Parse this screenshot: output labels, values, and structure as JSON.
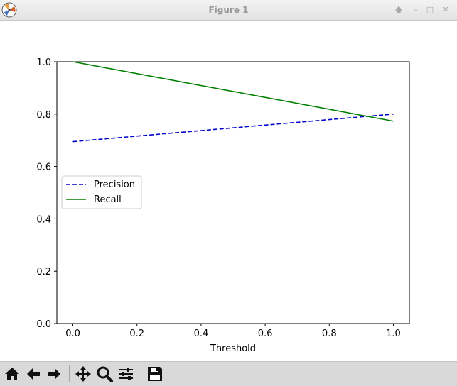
{
  "window": {
    "title": "Figure 1"
  },
  "toolbar": {
    "buttons": [
      {
        "name": "home-icon"
      },
      {
        "name": "back-arrow-icon"
      },
      {
        "name": "forward-arrow-icon"
      },
      {
        "name": "pan-icon"
      },
      {
        "name": "zoom-icon"
      },
      {
        "name": "subplots-config-icon"
      },
      {
        "name": "save-icon"
      }
    ]
  },
  "colors": {
    "precision": "#0000cc",
    "recall": "#008000"
  },
  "chart_data": {
    "type": "line",
    "title": "",
    "xlabel": "Threshold",
    "ylabel": "",
    "xlim": [
      -0.05,
      1.05
    ],
    "ylim": [
      0.0,
      1.0
    ],
    "xticks": [
      "0.0",
      "0.2",
      "0.4",
      "0.6",
      "0.8",
      "1.0"
    ],
    "yticks": [
      "0.0",
      "0.2",
      "0.4",
      "0.6",
      "0.8",
      "1.0"
    ],
    "grid": false,
    "legend_position": "center-left",
    "series": [
      {
        "name": "Precision",
        "style": "dashed",
        "color": "#0000cc",
        "x": [
          0.0,
          1.0
        ],
        "y": [
          0.695,
          0.8
        ]
      },
      {
        "name": "Recall",
        "style": "solid",
        "color": "#008000",
        "x": [
          0.0,
          1.0
        ],
        "y": [
          1.0,
          0.773
        ]
      }
    ]
  }
}
